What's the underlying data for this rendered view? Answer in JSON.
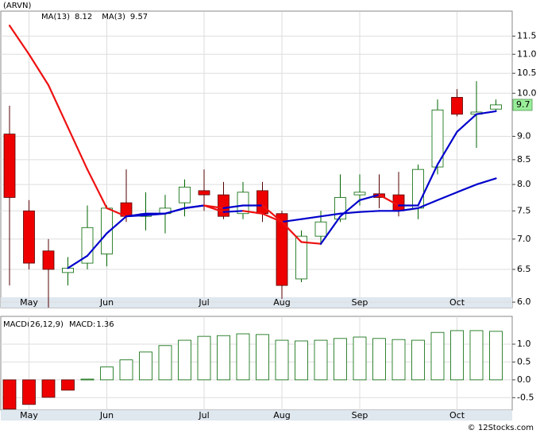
{
  "chart_data": [
    {
      "type": "candlestick",
      "title": "(ARVN)",
      "categories": [
        null,
        "May",
        null,
        null,
        null,
        "Jun",
        null,
        null,
        null,
        null,
        "Jul",
        null,
        null,
        null,
        "Aug",
        null,
        null,
        null,
        "Sep",
        null,
        null,
        null,
        null,
        "Oct",
        null,
        null
      ],
      "open": [
        9.05,
        7.5,
        6.8,
        6.45,
        6.6,
        6.75,
        7.65,
        7.4,
        7.45,
        7.65,
        7.88,
        7.8,
        7.45,
        7.88,
        7.45,
        6.35,
        7.05,
        7.35,
        7.8,
        7.82,
        7.8,
        7.55,
        8.35,
        9.9,
        9.5,
        9.62
      ],
      "high": [
        9.7,
        7.7,
        7.0,
        6.7,
        7.6,
        7.6,
        8.3,
        7.85,
        7.8,
        8.1,
        8.3,
        8.05,
        8.05,
        8.05,
        7.5,
        7.15,
        7.5,
        8.2,
        8.2,
        8.2,
        8.25,
        8.4,
        9.85,
        10.1,
        10.3,
        9.85
      ],
      "low": [
        6.25,
        6.5,
        5.92,
        6.25,
        6.5,
        6.55,
        7.3,
        7.15,
        7.1,
        7.4,
        7.5,
        7.35,
        7.35,
        7.3,
        6.05,
        6.3,
        6.9,
        7.3,
        7.6,
        7.55,
        7.4,
        7.35,
        8.2,
        9.45,
        8.75,
        9.55
      ],
      "close": [
        7.75,
        6.6,
        6.5,
        6.52,
        7.2,
        7.55,
        7.4,
        7.45,
        7.55,
        7.95,
        7.8,
        7.4,
        7.85,
        7.45,
        6.25,
        7.05,
        7.3,
        7.75,
        7.85,
        7.75,
        7.5,
        8.3,
        9.6,
        9.5,
        9.55,
        9.72
      ],
      "up_color": "#006600",
      "down_color": "#ee0000",
      "line_up_color": "#0000cc",
      "line_down_color": "#ee1111",
      "series": [
        {
          "name": "MA(13)",
          "color": "#006600",
          "values": [
            11.8,
            11.0,
            10.2,
            9.2,
            8.3,
            7.55,
            7.4,
            7.42,
            7.45,
            7.55,
            7.6,
            7.48,
            7.5,
            7.45,
            7.3,
            7.35,
            7.4,
            7.45,
            7.48,
            7.5,
            7.5,
            7.55,
            7.7,
            7.85,
            8.0,
            8.12
          ]
        },
        {
          "name": "MA(3)",
          "color": "#0000cc",
          "values": [
            null,
            null,
            null,
            6.52,
            6.72,
            7.1,
            7.4,
            7.45,
            7.45,
            7.55,
            7.6,
            7.55,
            7.6,
            7.6,
            7.3,
            6.95,
            6.92,
            7.4,
            7.7,
            7.8,
            7.6,
            7.6,
            8.4,
            9.1,
            9.5,
            9.57
          ]
        }
      ],
      "ylim": [
        5.92,
        12.2
      ],
      "log_scale": true,
      "grid": true,
      "yticks": [
        {
          "value": 6,
          "label": "6.0"
        },
        6.5,
        {
          "value": 7,
          "label": "7.0"
        },
        7.5,
        {
          "value": 8,
          "label": "8.0"
        },
        8.5,
        {
          "value": 9,
          "label": "9.0"
        },
        {
          "value": 10,
          "label": "10.0"
        },
        10.5,
        {
          "value": 11,
          "label": "11.0"
        },
        11.5
      ],
      "last_price": {
        "value": 9.72,
        "label": "9.7"
      }
    },
    {
      "type": "bar",
      "title": "MACD(26,12,9)",
      "categories": [
        null,
        "May",
        null,
        null,
        null,
        "Jun",
        null,
        null,
        null,
        null,
        "Jul",
        null,
        null,
        null,
        "Aug",
        null,
        null,
        null,
        "Sep",
        null,
        null,
        null,
        null,
        "Oct",
        null,
        null
      ],
      "series": [
        {
          "name": "MACD:",
          "color": "#0000cc",
          "values": [
            -0.82,
            -0.69,
            -0.49,
            -0.29,
            0.02,
            0.36,
            0.56,
            0.78,
            0.96,
            1.11,
            1.22,
            1.24,
            1.29,
            1.27,
            1.11,
            1.09,
            1.11,
            1.16,
            1.2,
            1.16,
            1.13,
            1.11,
            1.33,
            1.38,
            1.38,
            1.36
          ]
        }
      ],
      "up_color": "#006600",
      "down_color": "#ee0000",
      "ylim": [
        -0.85,
        1.78
      ],
      "grid": true,
      "yticks": [
        {
          "value": -0.5,
          "label": "-0.5"
        },
        {
          "value": 0,
          "label": "0.0"
        },
        0.5,
        {
          "value": 1,
          "label": "1.0"
        }
      ]
    }
  ],
  "footer": "© 12Stocks.com"
}
